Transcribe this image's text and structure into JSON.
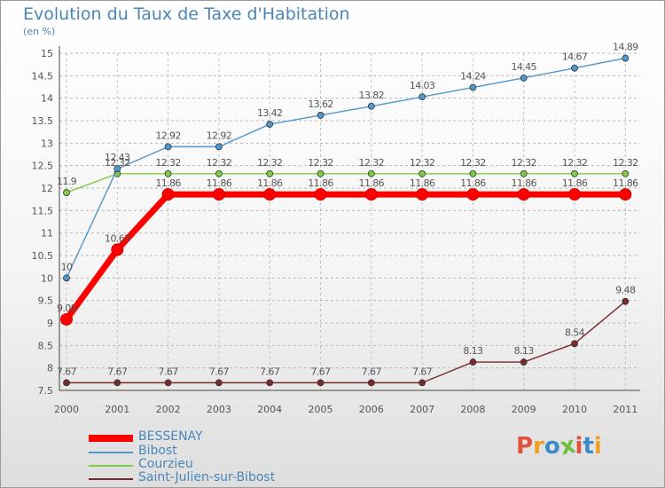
{
  "title": "Evolution du Taux de Taxe d'Habitation",
  "unit_label": "(en %)",
  "logo_text": "Proxiti",
  "chart_data": {
    "type": "line",
    "x": [
      "2000",
      "2001",
      "2002",
      "2003",
      "2004",
      "2005",
      "2006",
      "2007",
      "2008",
      "2009",
      "2010",
      "2011"
    ],
    "ylim": [
      7.5,
      15
    ],
    "yticks": [
      "7.5",
      "8",
      "8.5",
      "9",
      "9.5",
      "10",
      "10.5",
      "11",
      "11.5",
      "12",
      "12.5",
      "13",
      "13.5",
      "14",
      "14.5",
      "15"
    ],
    "grid": true,
    "legend_position": "bottom-left",
    "series": [
      {
        "name": "BESSENAY",
        "color": "#ff0000",
        "values": [
          9.08,
          10.63,
          11.86,
          11.86,
          11.86,
          11.86,
          11.86,
          11.86,
          11.86,
          11.86,
          11.86,
          11.86
        ],
        "labels": [
          "9.08",
          "10.63",
          "11.86",
          "11.86",
          "11.86",
          "11.86",
          "11.86",
          "11.86",
          "11.86",
          "11.86",
          "11.86",
          "11.86"
        ]
      },
      {
        "name": "Bibost",
        "color": "#4f97cc",
        "values": [
          10,
          12.43,
          12.92,
          12.92,
          13.42,
          13.62,
          13.82,
          14.03,
          14.24,
          14.45,
          14.67,
          14.89
        ],
        "labels": [
          "10",
          "12.43",
          "12.92",
          "12.92",
          "13.42",
          "13.62",
          "13.82",
          "14.03",
          "14.24",
          "14.45",
          "14.67",
          "14.89"
        ]
      },
      {
        "name": "Courzieu",
        "color": "#7fcc47",
        "values": [
          11.9,
          12.32,
          12.32,
          12.32,
          12.32,
          12.32,
          12.32,
          12.32,
          12.32,
          12.32,
          12.32,
          12.32
        ],
        "labels": [
          "11.9",
          "12.32",
          "12.32",
          "12.32",
          "12.32",
          "12.32",
          "12.32",
          "12.32",
          "12.32",
          "12.32",
          "12.32",
          "12.32"
        ]
      },
      {
        "name": "Saint-Julien-sur-Bibost",
        "color": "#7a2a2a",
        "values": [
          7.67,
          7.67,
          7.67,
          7.67,
          7.67,
          7.67,
          7.67,
          7.67,
          8.13,
          8.13,
          8.54,
          9.48
        ],
        "labels": [
          "7.67",
          "7.67",
          "7.67",
          "7.67",
          "7.67",
          "7.67",
          "7.67",
          "7.67",
          "8.13",
          "8.13",
          "8.54",
          "9.48"
        ]
      }
    ]
  }
}
